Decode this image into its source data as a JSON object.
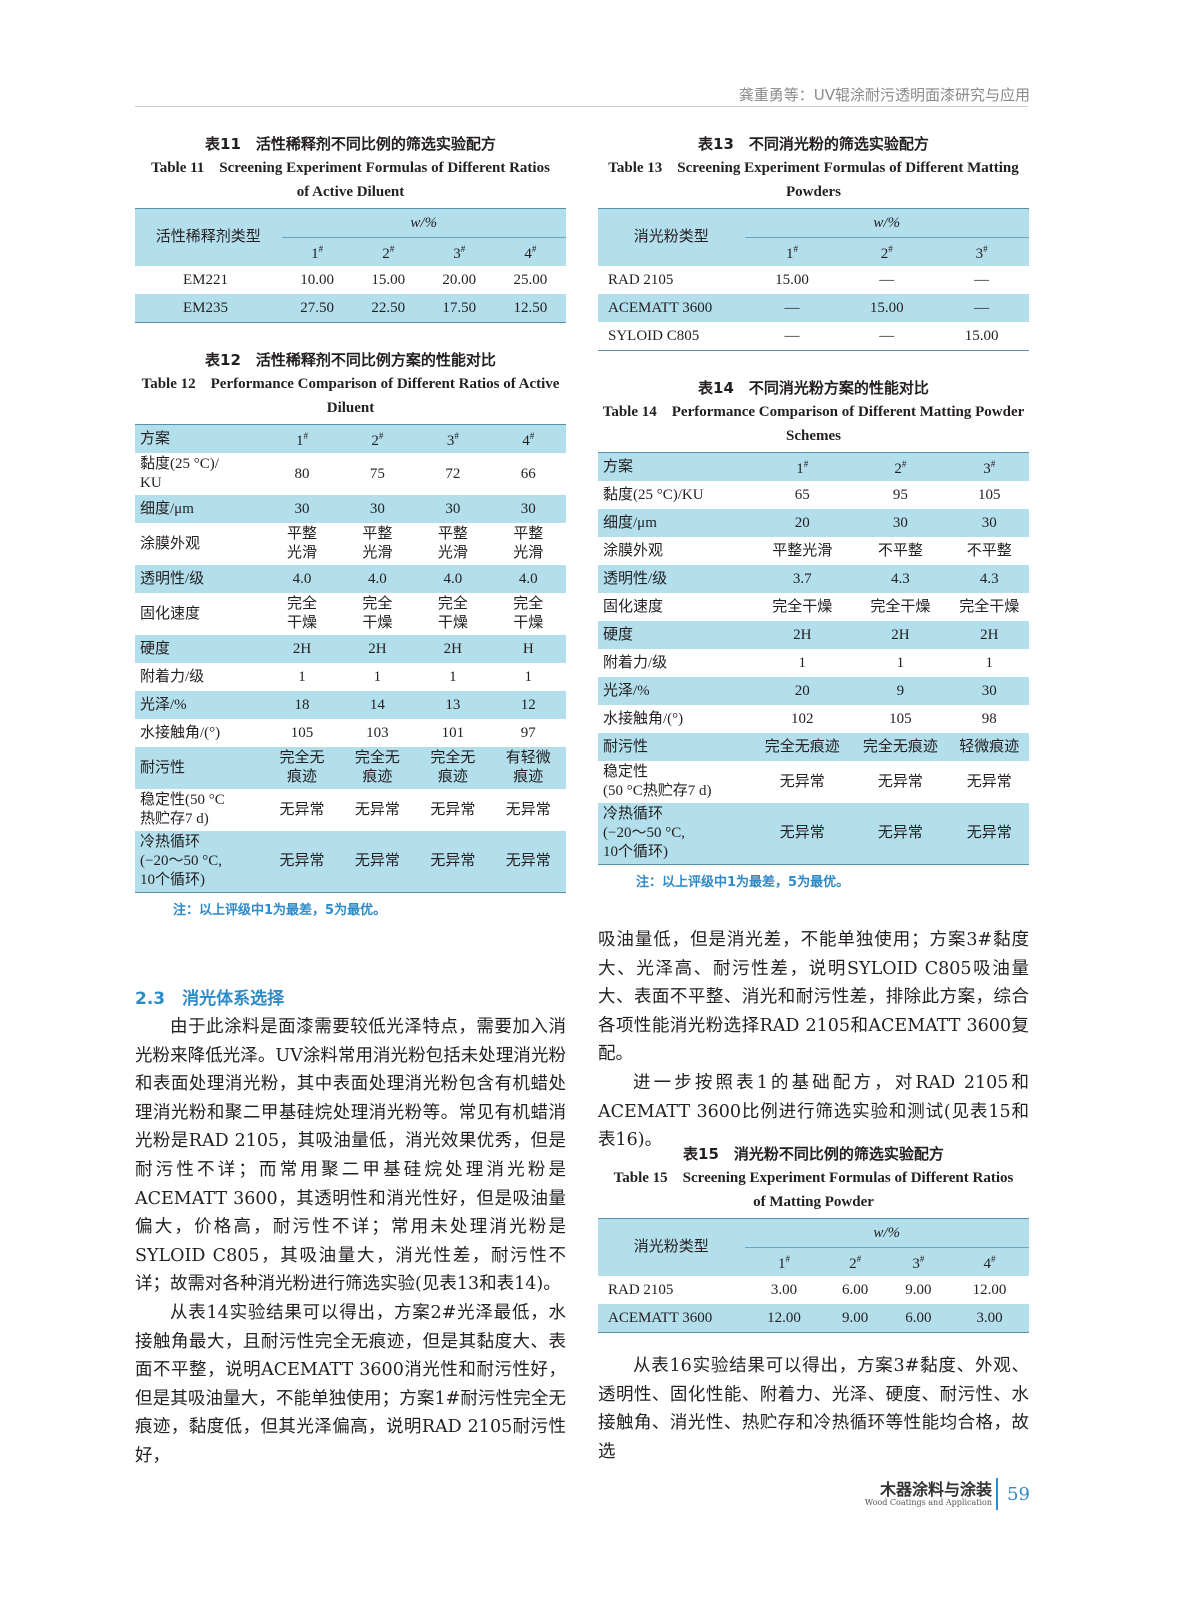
{
  "running_header": "龚重勇等：UV辊涂耐污透明面漆研究与应用",
  "tables": {
    "t11": {
      "title_cn": "表11　活性稀释剂不同比例的筛选实验配方",
      "title_en": "Table 11　Screening Experiment Formulas of Different Ratios of Active Diluent",
      "row_header": "活性稀释剂类型",
      "group": "w/%",
      "cols": [
        "1#",
        "2#",
        "3#",
        "4#"
      ],
      "rows": [
        [
          "EM221",
          "10.00",
          "15.00",
          "20.00",
          "25.00"
        ],
        [
          "EM235",
          "27.50",
          "22.50",
          "17.50",
          "12.50"
        ]
      ]
    },
    "t12": {
      "title_cn": "表12　活性稀释剂不同比例方案的性能对比",
      "title_en": "Table 12　Performance Comparison of Different Ratios of Active Diluent",
      "row_header": "方案",
      "cols": [
        "1#",
        "2#",
        "3#",
        "4#"
      ],
      "rows": [
        [
          "黏度(25 °C)/\nKU",
          "80",
          "75",
          "72",
          "66"
        ],
        [
          "细度/μm",
          "30",
          "30",
          "30",
          "30"
        ],
        [
          "涂膜外观",
          "平整\n光滑",
          "平整\n光滑",
          "平整\n光滑",
          "平整\n光滑"
        ],
        [
          "透明性/级",
          "4.0",
          "4.0",
          "4.0",
          "4.0"
        ],
        [
          "固化速度",
          "完全\n干燥",
          "完全\n干燥",
          "完全\n干燥",
          "完全\n干燥"
        ],
        [
          "硬度",
          "2H",
          "2H",
          "2H",
          "H"
        ],
        [
          "附着力/级",
          "1",
          "1",
          "1",
          "1"
        ],
        [
          "光泽/%",
          "18",
          "14",
          "13",
          "12"
        ],
        [
          "水接触角/(°)",
          "105",
          "103",
          "101",
          "97"
        ],
        [
          "耐污性",
          "完全无\n痕迹",
          "完全无\n痕迹",
          "完全无\n痕迹",
          "有轻微\n痕迹"
        ],
        [
          "稳定性(50 °C\n热贮存7 d)",
          "无异常",
          "无异常",
          "无异常",
          "无异常"
        ],
        [
          "冷热循环\n(−20～50 °C,\n10个循环)",
          "无异常",
          "无异常",
          "无异常",
          "无异常"
        ]
      ],
      "note": "注：以上评级中1为最差，5为最优。"
    },
    "t13": {
      "title_cn": "表13　不同消光粉的筛选实验配方",
      "title_en": "Table 13　Screening Experiment Formulas of Different Matting Powders",
      "row_header": "消光粉类型",
      "group": "w/%",
      "cols": [
        "1#",
        "2#",
        "3#"
      ],
      "rows": [
        [
          "RAD 2105",
          "15.00",
          "—",
          "—"
        ],
        [
          "ACEMATT 3600",
          "—",
          "15.00",
          "—"
        ],
        [
          "SYLOID C805",
          "—",
          "—",
          "15.00"
        ]
      ]
    },
    "t14": {
      "title_cn": "表14　不同消光粉方案的性能对比",
      "title_en": "Table 14　Performance Comparison of Different Matting Powder Schemes",
      "row_header": "方案",
      "cols": [
        "1#",
        "2#",
        "3#"
      ],
      "rows": [
        [
          "黏度(25 °C)/KU",
          "65",
          "95",
          "105"
        ],
        [
          "细度/μm",
          "20",
          "30",
          "30"
        ],
        [
          "涂膜外观",
          "平整光滑",
          "不平整",
          "不平整"
        ],
        [
          "透明性/级",
          "3.7",
          "4.3",
          "4.3"
        ],
        [
          "固化速度",
          "完全干燥",
          "完全干燥",
          "完全干燥"
        ],
        [
          "硬度",
          "2H",
          "2H",
          "2H"
        ],
        [
          "附着力/级",
          "1",
          "1",
          "1"
        ],
        [
          "光泽/%",
          "20",
          "9",
          "30"
        ],
        [
          "水接触角/(°)",
          "102",
          "105",
          "98"
        ],
        [
          "耐污性",
          "完全无痕迹",
          "完全无痕迹",
          "轻微痕迹"
        ],
        [
          "稳定性\n(50 °C热贮存7 d)",
          "无异常",
          "无异常",
          "无异常"
        ],
        [
          "冷热循环\n(−20～50 °C,\n10个循环)",
          "无异常",
          "无异常",
          "无异常"
        ]
      ],
      "note": "注：以上评级中1为最差，5为最优。"
    },
    "t15": {
      "title_cn": "表15　消光粉不同比例的筛选实验配方",
      "title_en": "Table 15　Screening Experiment Formulas of Different Ratios of Matting Powder",
      "row_header": "消光粉类型",
      "group": "w/%",
      "cols": [
        "1#",
        "2#",
        "3#",
        "4#"
      ],
      "rows": [
        [
          "RAD 2105",
          "3.00",
          "6.00",
          "9.00",
          "12.00"
        ],
        [
          "ACEMATT 3600",
          "12.00",
          "9.00",
          "6.00",
          "3.00"
        ]
      ]
    }
  },
  "section": {
    "title": "2.3　消光体系选择"
  },
  "left_paragraphs": [
    "由于此涂料是面漆需要较低光泽特点，需要加入消光粉来降低光泽。UV涂料常用消光粉包括未处理消光粉和表面处理消光粉，其中表面处理消光粉包含有机蜡处理消光粉和聚二甲基硅烷处理消光粉等。常见有机蜡消光粉是RAD 2105，其吸油量低，消光效果优秀，但是耐污性不详；而常用聚二甲基硅烷处理消光粉是ACEMATT 3600，其透明性和消光性好，但是吸油量偏大，价格高，耐污性不详；常用未处理消光粉是SYLOID C805，其吸油量大，消光性差，耐污性不详；故需对各种消光粉进行筛选实验(见表13和表14)。",
    "从表14实验结果可以得出，方案2#光泽最低，水接触角最大，且耐污性完全无痕迹，但是其黏度大、表面不平整，说明ACEMATT 3600消光性和耐污性好，但是其吸油量大，不能单独使用；方案1#耐污性完全无痕迹，黏度低，但其光泽偏高，说明RAD 2105耐污性好，"
  ],
  "right_paragraphs_top": [
    "吸油量低，但是消光差，不能单独使用；方案3#黏度大、光泽高、耐污性差，说明SYLOID C805吸油量大、表面不平整、消光和耐污性差，排除此方案，综合各项性能消光粉选择RAD 2105和ACEMATT 3600复配。",
    "进一步按照表1的基础配方，对RAD 2105和ACEMATT 3600比例进行筛选实验和测试(见表15和表16)。"
  ],
  "right_paragraphs_bottom": [
    "从表16实验结果可以得出，方案3#黏度、外观、透明性、固化性能、附着力、光泽、硬度、耐污性、水接触角、消光性、热贮存和冷热循环等性能均合格，故选"
  ],
  "footer": {
    "journal_cn": "木器涂料与涂装",
    "journal_en": "Wood Coatings and Application",
    "page": "59"
  },
  "colors": {
    "table_blue": "#b3dfec",
    "accent": "#2e8bc9"
  }
}
